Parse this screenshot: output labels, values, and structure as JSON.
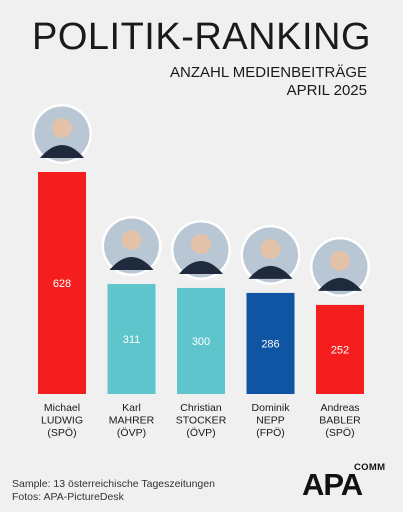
{
  "header": {
    "title": "POLITIK-RANKING",
    "subtitle_line1": "ANZAHL MEDIENBEITRÄGE",
    "subtitle_line2": "APRIL 2025"
  },
  "chart_data": {
    "type": "bar",
    "title": "POLITIK-RANKING",
    "categories": [
      [
        "Michael",
        "LUDWIG",
        "(SPÖ)"
      ],
      [
        "Karl",
        "MAHRER",
        "(ÖVP)"
      ],
      [
        "Christian",
        "STOCKER",
        "(ÖVP)"
      ],
      [
        "Dominik",
        "NEPP",
        "(FPÖ)"
      ],
      [
        "Andreas",
        "BABLER",
        "(SPÖ)"
      ]
    ],
    "values": [
      628,
      311,
      300,
      286,
      252
    ],
    "colors": [
      "#f51e1e",
      "#5ec5cd",
      "#5ec5cd",
      "#0e55a3",
      "#f51e1e"
    ],
    "ylim": [
      0,
      628
    ]
  },
  "footer": {
    "line1": "Sample: 13 österreichische Tageszeitungen",
    "line2": "Fotos: APA-PictureDesk"
  },
  "logo": {
    "main": "APA",
    "sup": "COMM"
  }
}
